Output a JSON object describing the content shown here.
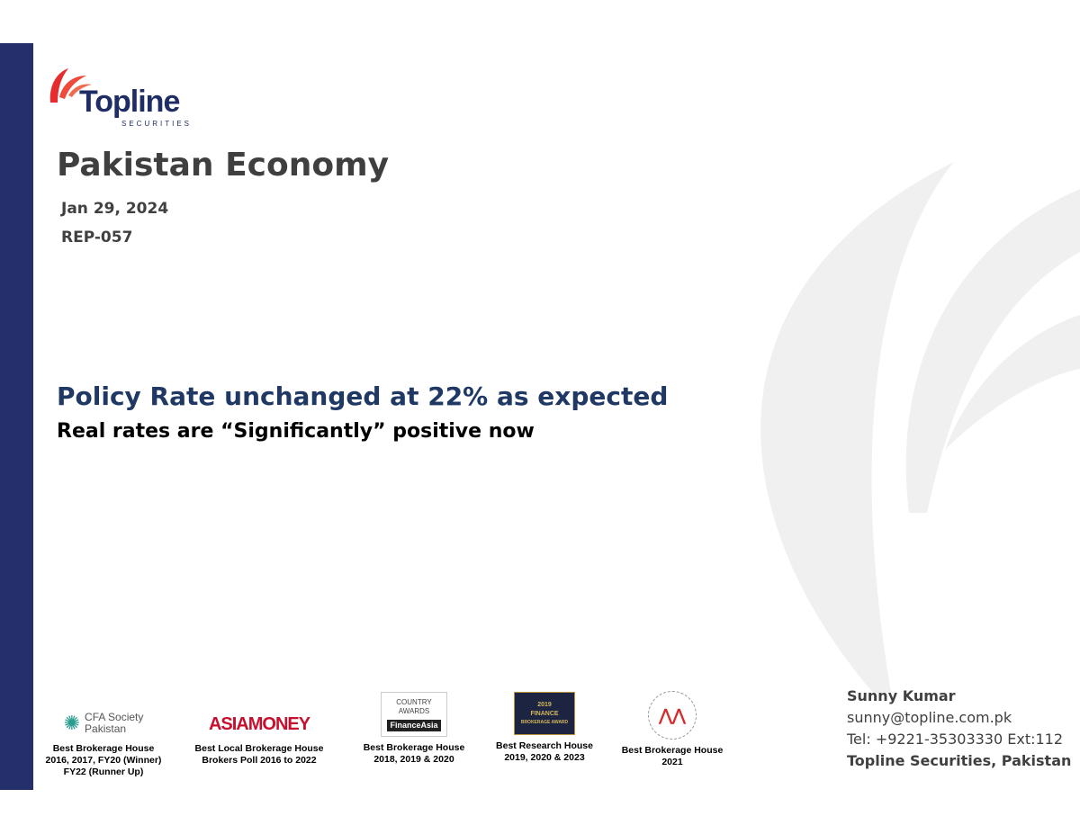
{
  "report": {
    "title": "Pakistan Economy",
    "date": "Jan 29, 2024",
    "code": "REP-057",
    "headline": "Policy Rate unchanged at 22% as expected",
    "subheadline": "Real rates are “Significantly” positive now"
  },
  "logo": {
    "name": "Topline",
    "sub": "SECURITIES"
  },
  "awards": [
    {
      "logo": "CFA Society Pakistan",
      "caption": "Best Brokerage House\n2016, 2017, FY20 (Winner)\nFY22 (Runner Up)"
    },
    {
      "logo": "ASIAMONEY",
      "caption": "Best Local Brokerage House\nBrokers Poll 2016 to 2022"
    },
    {
      "logo": "FinanceAsia Country Awards 2018",
      "caption": "Best  Brokerage House\n2018, 2019 & 2020"
    },
    {
      "logo": "International Finance Brokerage Awards 2019",
      "caption": "Best Research House\n2019, 2020 & 2023"
    },
    {
      "logo": "The Asset Triple A Asian Awards 2019",
      "caption": "Best  Brokerage House\n2021"
    }
  ],
  "contact": {
    "name": "Sunny Kumar",
    "email": "sunny@topline.com.pk",
    "phone": "Tel: +9221-35303330 Ext:112",
    "company": "Topline Securities, Pakistan"
  },
  "colors": {
    "bar": "#25306a",
    "headline": "#1f3864",
    "logo_red": "#e52d2d"
  }
}
